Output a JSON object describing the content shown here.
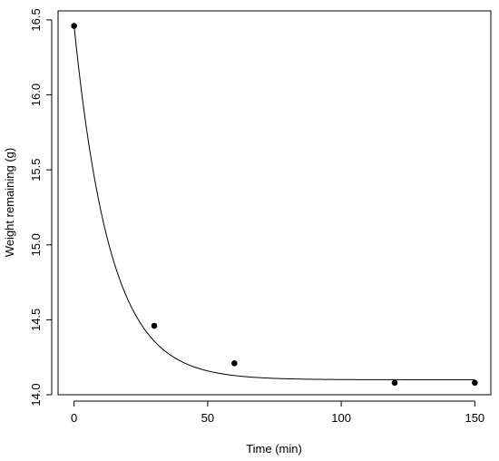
{
  "chart_data": {
    "type": "scatter",
    "title": "",
    "xlabel": "Time (min)",
    "ylabel": "Weight remaining (g)",
    "xlim": [
      -6,
      156
    ],
    "ylim": [
      14.0,
      16.56
    ],
    "x_ticks": [
      0,
      50,
      100,
      150
    ],
    "x_tick_labels": [
      "0",
      "50",
      "100",
      "150"
    ],
    "y_ticks": [
      14.0,
      14.5,
      15.0,
      15.5,
      16.0,
      16.5
    ],
    "y_tick_labels": [
      "14.0",
      "14.5",
      "15.0",
      "15.5",
      "16.0",
      "16.5"
    ],
    "grid": false,
    "legend": "none",
    "series": [
      {
        "type": "scatter",
        "x": [
          0,
          30,
          60,
          120,
          150
        ],
        "y": [
          16.46,
          14.46,
          14.21,
          14.08,
          14.08
        ]
      },
      {
        "type": "line",
        "fit": "exponential decay",
        "model": {
          "asymptote": 14.1,
          "amplitude": 2.36,
          "rate_per_min": 0.0738
        },
        "x_range": [
          0,
          150
        ]
      }
    ],
    "colors": {
      "points": "#000000",
      "line": "#000000",
      "axes": "#000000"
    }
  }
}
